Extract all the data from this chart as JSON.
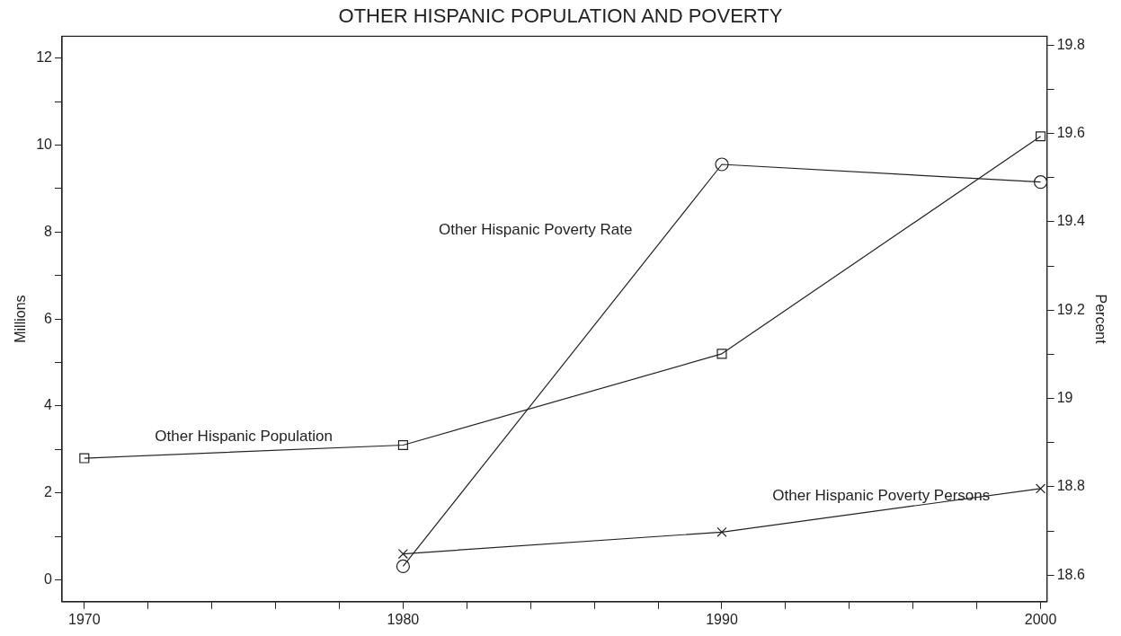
{
  "chart_data": {
    "type": "line",
    "title": "OTHER HISPANIC POPULATION AND POVERTY",
    "ylabel": "Millions",
    "y2label": "Percent",
    "x": [
      1970,
      1980,
      1990,
      2000
    ],
    "series": [
      {
        "name": "Other Hispanic Population",
        "color": "#222222",
        "values": [
          2.8,
          3.1,
          5.2,
          10.2
        ],
        "marker": "square"
      },
      {
        "name": "Other Hispanic Poverty Persons",
        "color": "#222222",
        "values": [
          null,
          0.6,
          1.1,
          2.1
        ],
        "marker": "cross"
      },
      {
        "name": "Other Hispanic Poverty Rate",
        "color": "#222222",
        "values": [
          null,
          18.62,
          19.53,
          19.49
        ],
        "marker": "circle",
        "axis": "y2"
      }
    ],
    "xlim": [
      1969.3,
      2000.2
    ],
    "xticks": [
      1970,
      {
        "value": 1972,
        "label": null
      },
      {
        "value": 1974,
        "label": null
      },
      {
        "value": 1976,
        "label": null
      },
      {
        "value": 1978,
        "label": null
      },
      1980,
      {
        "value": 1982,
        "label": null
      },
      {
        "value": 1984,
        "label": null
      },
      {
        "value": 1986,
        "label": null
      },
      {
        "value": 1988,
        "label": null
      },
      1990,
      {
        "value": 1992,
        "label": null
      },
      {
        "value": 1994,
        "label": null
      },
      {
        "value": 1996,
        "label": null
      },
      {
        "value": 1998,
        "label": null
      },
      2000
    ],
    "ylim": [
      -0.5,
      12.5
    ],
    "yticks": [
      0,
      {
        "value": 1,
        "label": null
      },
      2,
      {
        "value": 3,
        "label": null
      },
      4,
      {
        "value": 5,
        "label": null
      },
      6,
      {
        "value": 7,
        "label": null
      },
      8,
      {
        "value": 9,
        "label": null
      },
      10,
      {
        "value": 11,
        "label": null
      },
      12
    ],
    "y2lim": [
      18.54,
      19.82
    ],
    "y2ticks": [
      18.6,
      {
        "value": 18.7,
        "label": null
      },
      18.8,
      {
        "value": 18.9,
        "label": null
      },
      19,
      {
        "value": 19.1,
        "label": null
      },
      19.2,
      {
        "value": 19.3,
        "label": null
      },
      19.4,
      {
        "value": 19.5,
        "label": null
      },
      19.6,
      {
        "value": 19.7,
        "label": null
      },
      19.8
    ],
    "grid": false,
    "legend": false,
    "line_style": "solid"
  }
}
